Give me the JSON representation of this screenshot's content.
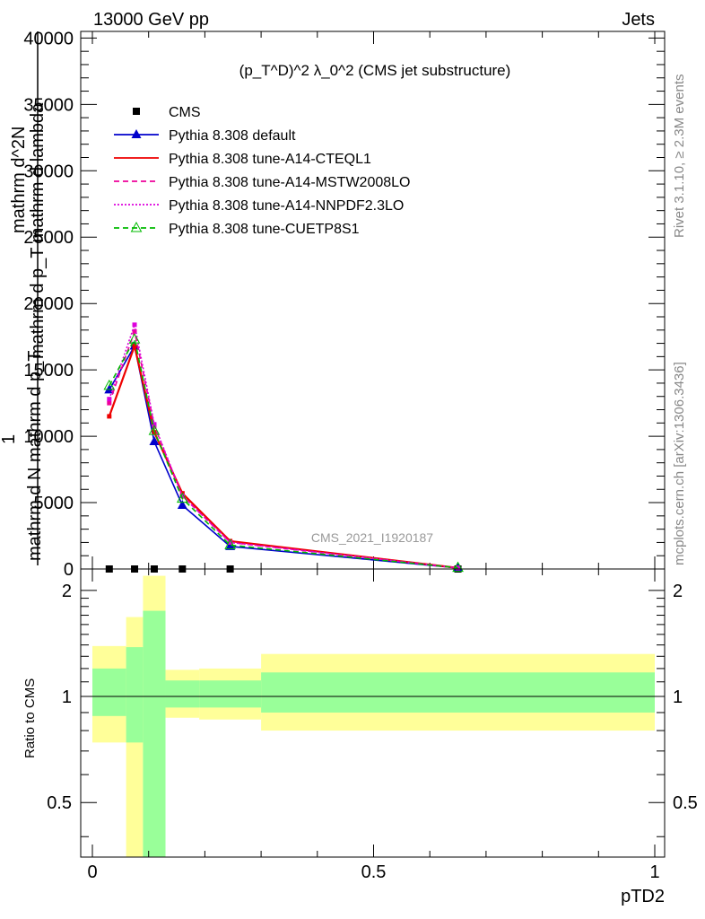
{
  "header": {
    "left": "13000 GeV pp",
    "right": "Jets"
  },
  "side_labels": {
    "rivet": "Rivet 3.1.10, ≥ 2.3M events",
    "mcplots": "mcplots.cern.ch [arXiv:1306.3436]"
  },
  "chart_data": [
    {
      "type": "line",
      "panel": "main",
      "title": "(p_T^D)^2 λ_0^2 (CMS jet substructure)",
      "watermark": "CMS_2021_I1920187",
      "ylabel_lines": [
        "mathrm d^2N",
        "mathrm d p_T mathrm d lambda",
        "1",
        "mathrm d N mathrm d p_T"
      ],
      "xlim": [
        0,
        1
      ],
      "ylim": [
        0,
        40500
      ],
      "y_ticks": [
        0,
        5000,
        10000,
        15000,
        20000,
        25000,
        30000,
        35000,
        40000
      ],
      "y_tick_labels": [
        "0",
        "5000",
        "10000",
        "15000",
        "20000",
        "25000",
        "30000",
        "35000",
        "40000"
      ],
      "legend_position": "top-left",
      "series": [
        {
          "name": "CMS",
          "color": "#000000",
          "style": "points",
          "marker": "square",
          "x": [
            0.03,
            0.075,
            0.11,
            0.16,
            0.245,
            0.65
          ],
          "y": [
            0,
            0,
            0,
            0,
            0,
            0
          ]
        },
        {
          "name": "Pythia 8.308 default",
          "color": "#0000cc",
          "style": "solid",
          "marker": "triangle",
          "x": [
            0.03,
            0.075,
            0.11,
            0.16,
            0.245,
            0.65
          ],
          "y": [
            13500,
            16800,
            9600,
            4800,
            1700,
            80
          ]
        },
        {
          "name": "Pythia 8.308 tune-A14-CTEQL1",
          "color": "#ee0000",
          "style": "solid",
          "marker": "none",
          "x": [
            0.03,
            0.075,
            0.11,
            0.16,
            0.245,
            0.65
          ],
          "y": [
            11500,
            16800,
            10300,
            5700,
            2100,
            80
          ]
        },
        {
          "name": "Pythia 8.308 tune-A14-MSTW2008LO",
          "color": "#ee0099",
          "style": "dashed",
          "marker": "none",
          "x": [
            0.03,
            0.075,
            0.11,
            0.16,
            0.245,
            0.65
          ],
          "y": [
            12500,
            17900,
            10800,
            5500,
            2000,
            80
          ]
        },
        {
          "name": "Pythia 8.308 tune-A14-NNPDF2.3LO",
          "color": "#dd00dd",
          "style": "dotted",
          "marker": "none",
          "x": [
            0.03,
            0.075,
            0.11,
            0.16,
            0.245,
            0.65
          ],
          "y": [
            12800,
            18400,
            10900,
            5500,
            2000,
            80
          ]
        },
        {
          "name": "Pythia 8.308 tune-CUETP8S1",
          "color": "#00bb00",
          "style": "dashed",
          "marker": "open-triangle",
          "x": [
            0.03,
            0.075,
            0.11,
            0.16,
            0.245,
            0.65
          ],
          "y": [
            13800,
            17300,
            10400,
            5300,
            1800,
            90
          ]
        }
      ]
    },
    {
      "type": "area",
      "panel": "ratio",
      "ylabel": "Ratio to CMS",
      "xlabel": "pTD2",
      "xlim": [
        0,
        1
      ],
      "ylim": [
        0.35,
        2.3
      ],
      "y_ticks": [
        0.5,
        1,
        2
      ],
      "y_tick_labels": [
        "0.5",
        "1",
        "2"
      ],
      "x_ticks": [
        0,
        0.5,
        1
      ],
      "x_tick_labels": [
        "0",
        "0.5",
        "1"
      ],
      "reference_line": 1,
      "bins": [
        {
          "x0": 0.0,
          "x1": 0.06,
          "stat": [
            0.88,
            1.2
          ],
          "total": [
            0.74,
            1.39
          ]
        },
        {
          "x0": 0.06,
          "x1": 0.09,
          "stat": [
            0.74,
            1.38
          ],
          "total": [
            0.3,
            1.68
          ]
        },
        {
          "x0": 0.09,
          "x1": 0.13,
          "stat": [
            0.3,
            1.75
          ],
          "total": [
            0.3,
            2.2
          ]
        },
        {
          "x0": 0.13,
          "x1": 0.19,
          "stat": [
            0.93,
            1.11
          ],
          "total": [
            0.87,
            1.19
          ]
        },
        {
          "x0": 0.19,
          "x1": 0.3,
          "stat": [
            0.93,
            1.11
          ],
          "total": [
            0.86,
            1.2
          ]
        },
        {
          "x0": 0.3,
          "x1": 1.0,
          "stat": [
            0.9,
            1.17
          ],
          "total": [
            0.8,
            1.32
          ]
        }
      ],
      "colors": {
        "stat": "#99ff99",
        "total": "#ffff99"
      }
    }
  ]
}
